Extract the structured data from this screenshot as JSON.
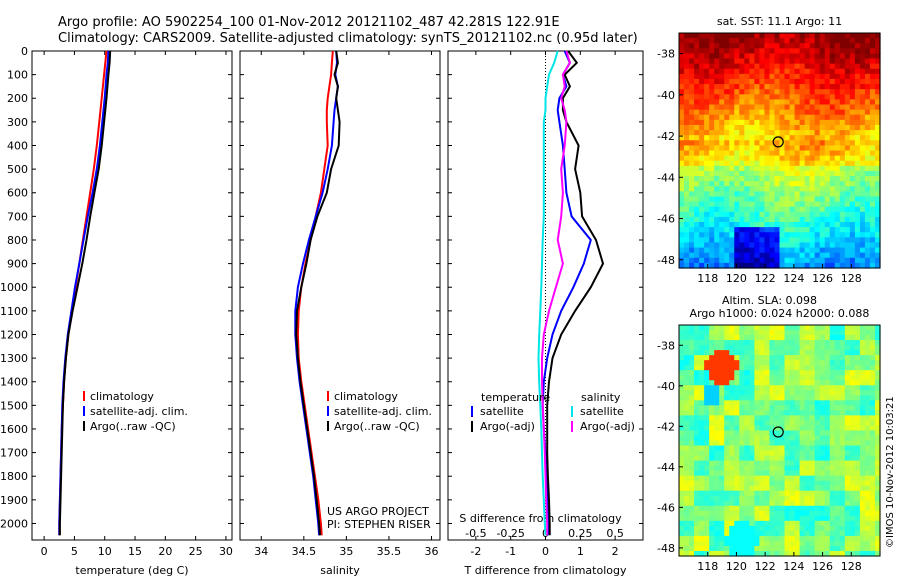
{
  "title": {
    "line1": "Argo profile: AO 5902254_100 01-Nov-2012 20121102_487 42.281S 122.91E",
    "line2": "Climatology: CARS2009. Satellite-adjusted climatology: synTS_20121102.nc (0.95d later)"
  },
  "colors": {
    "climatology": "#ff0000",
    "satellite": "#0000ff",
    "argo": "#000000",
    "sat_sal": "#00e5e5",
    "argo_sal": "#ff00ff"
  },
  "chart_data": [
    {
      "type": "line",
      "id": "temperature",
      "xlabel": "temperature (deg C)",
      "ylabel": "",
      "xlim": [
        -2,
        31
      ],
      "ylim": [
        2070,
        0
      ],
      "xticks": [
        0,
        5,
        10,
        15,
        20,
        25,
        30
      ],
      "yticks": [
        0,
        100,
        200,
        300,
        400,
        500,
        600,
        700,
        800,
        900,
        1000,
        1100,
        1200,
        1300,
        1400,
        1500,
        1600,
        1700,
        1800,
        1900,
        2000
      ],
      "depth": [
        0,
        50,
        100,
        200,
        300,
        400,
        500,
        600,
        700,
        800,
        900,
        1000,
        1100,
        1200,
        1300,
        1400,
        1500,
        1600,
        1700,
        1800,
        1900,
        2000,
        2050
      ],
      "legend": [
        "climatology",
        "satellite-adj. clim.",
        "Argo(..raw -QC)"
      ],
      "series": [
        {
          "name": "climatology",
          "color": "#ff0000",
          "values": [
            10.3,
            10.1,
            9.9,
            9.5,
            9.1,
            8.7,
            8.2,
            7.6,
            7.0,
            6.4,
            5.8,
            5.2,
            4.6,
            4.0,
            3.6,
            3.3,
            3.1,
            2.9,
            2.8,
            2.7,
            2.6,
            2.5,
            2.5
          ]
        },
        {
          "name": "satellite-adj. clim.",
          "color": "#0000ff",
          "values": [
            10.6,
            10.5,
            10.3,
            10.0,
            9.6,
            9.2,
            8.7,
            8.0,
            7.2,
            6.5,
            5.8,
            5.1,
            4.5,
            3.9,
            3.5,
            3.2,
            3.0,
            2.9,
            2.8,
            2.7,
            2.6,
            2.5,
            2.5
          ]
        },
        {
          "name": "Argo(..raw -QC)",
          "color": "#000000",
          "values": [
            10.9,
            10.8,
            10.6,
            10.3,
            9.9,
            9.5,
            9.0,
            8.3,
            7.6,
            7.0,
            6.3,
            5.5,
            4.7,
            4.0,
            3.6,
            3.3,
            3.1,
            3.0,
            2.9,
            2.8,
            2.7,
            2.6,
            2.6
          ]
        }
      ]
    },
    {
      "type": "line",
      "id": "salinity",
      "xlabel": "salinity",
      "ylabel": "",
      "xlim": [
        33.75,
        36.1
      ],
      "ylim": [
        2070,
        0
      ],
      "xticks": [
        34,
        34.5,
        35,
        35.5,
        36
      ],
      "xticklabels": [
        "34",
        "34.5",
        "35",
        "35.5",
        "36"
      ],
      "depth": [
        0,
        50,
        100,
        150,
        200,
        250,
        300,
        400,
        500,
        600,
        700,
        800,
        900,
        1000,
        1100,
        1200,
        1300,
        1400,
        1500,
        1600,
        1700,
        1800,
        1900,
        2000,
        2050
      ],
      "legend": [
        "climatology",
        "satellite-adj. clim.",
        "Argo(..raw -QC)"
      ],
      "annotation": [
        "US ARGO PROJECT",
        "PI: STEPHEN RISER"
      ],
      "series": [
        {
          "name": "climatology",
          "color": "#ff0000",
          "values": [
            34.84,
            34.83,
            34.82,
            34.8,
            34.78,
            34.77,
            34.77,
            34.78,
            34.74,
            34.7,
            34.64,
            34.58,
            34.52,
            34.47,
            34.44,
            34.43,
            34.44,
            34.47,
            34.51,
            34.55,
            34.59,
            34.63,
            34.67,
            34.7,
            34.71
          ]
        },
        {
          "name": "satellite-adj. clim.",
          "color": "#0000ff",
          "values": [
            34.88,
            34.89,
            34.87,
            34.9,
            34.88,
            34.86,
            34.85,
            34.83,
            34.78,
            34.72,
            34.64,
            34.56,
            34.49,
            34.43,
            34.4,
            34.4,
            34.42,
            34.45,
            34.49,
            34.53,
            34.57,
            34.61,
            34.64,
            34.67,
            34.68
          ]
        },
        {
          "name": "Argo(..raw -QC)",
          "color": "#000000",
          "values": [
            34.88,
            34.9,
            34.86,
            34.9,
            34.88,
            34.9,
            34.92,
            34.91,
            34.82,
            34.77,
            34.66,
            34.58,
            34.53,
            34.47,
            34.42,
            34.41,
            34.43,
            34.46,
            34.5,
            34.54,
            34.58,
            34.62,
            34.65,
            34.68,
            34.69
          ]
        }
      ]
    },
    {
      "type": "line",
      "id": "difference",
      "xlabel": "T difference from climatology",
      "xlabel_top": "S difference from climatology",
      "xlim": [
        -2.8,
        2.8
      ],
      "ylim": [
        2070,
        0
      ],
      "xticks": [
        -2,
        -1,
        0,
        1,
        2
      ],
      "top_ticks": [
        -0.5,
        -0.25,
        0,
        0.25,
        0.5
      ],
      "top_ticklabels": [
        "-0.5",
        "-0.25",
        "0",
        "0.25",
        "0.5"
      ],
      "legend_titles": [
        "temperature",
        "salinity"
      ],
      "legend": [
        "satellite",
        "Argo(-adj)",
        "satellite",
        "Argo(-adj)"
      ],
      "depth": [
        0,
        50,
        100,
        150,
        200,
        250,
        300,
        400,
        500,
        600,
        700,
        800,
        900,
        1000,
        1100,
        1200,
        1300,
        1400,
        1500,
        1600,
        1700,
        1800,
        1900,
        2000,
        2050
      ],
      "series": [
        {
          "name": "satellite",
          "color": "#0000ff",
          "values": [
            0.55,
            0.7,
            0.5,
            0.6,
            0.4,
            0.35,
            0.4,
            0.5,
            0.55,
            0.6,
            0.75,
            1.3,
            1.1,
            0.8,
            0.45,
            0.2,
            0.05,
            -0.05,
            -0.08,
            -0.05,
            0.0,
            0.02,
            0.05,
            0.08,
            0.08
          ]
        },
        {
          "name": "Argo(-adj)",
          "color": "#000000",
          "values": [
            0.65,
            0.9,
            0.55,
            0.7,
            0.5,
            0.5,
            0.6,
            0.95,
            0.85,
            1.0,
            1.05,
            1.45,
            1.65,
            1.3,
            0.85,
            0.45,
            0.2,
            0.1,
            0.05,
            0.05,
            0.05,
            0.07,
            0.1,
            0.12,
            0.12
          ]
        },
        {
          "name": "satellite",
          "color": "#00e5e5",
          "values": [
            0.35,
            0.25,
            0.1,
            0.05,
            0.0,
            0.0,
            -0.05,
            -0.05,
            -0.05,
            -0.05,
            -0.05,
            -0.08,
            -0.1,
            -0.12,
            -0.15,
            -0.18,
            -0.2,
            -0.18,
            -0.15,
            -0.12,
            -0.1,
            -0.08,
            -0.05,
            -0.02,
            0.0
          ]
        },
        {
          "name": "Argo(-adj)",
          "color": "#ff00ff",
          "values": [
            0.6,
            0.7,
            0.5,
            0.55,
            0.45,
            0.55,
            0.6,
            0.55,
            0.45,
            0.5,
            0.45,
            0.35,
            0.5,
            0.3,
            0.1,
            -0.05,
            -0.1,
            -0.1,
            -0.08,
            -0.05,
            -0.02,
            0.0,
            0.02,
            0.05,
            0.05
          ]
        }
      ]
    },
    {
      "type": "heatmap",
      "id": "sst-map",
      "title": "sat. SST: 11.1 Argo: 11",
      "xlim": [
        116,
        130
      ],
      "ylim": [
        -48.4,
        -37
      ],
      "xticks": [
        118,
        120,
        122,
        124,
        126,
        128
      ],
      "yticks": [
        -38,
        -40,
        -42,
        -44,
        -46,
        -48
      ],
      "marker": {
        "lon": 122.91,
        "lat": -42.281
      }
    },
    {
      "type": "heatmap",
      "id": "sla-map",
      "title_line1": "Altim. SLA: 0.098",
      "title_line2": "Argo h1000: 0.024 h2000: 0.088",
      "xlim": [
        116,
        130
      ],
      "ylim": [
        -48.4,
        -37
      ],
      "xticks": [
        118,
        120,
        122,
        124,
        126,
        128
      ],
      "yticks": [
        -38,
        -40,
        -42,
        -44,
        -46,
        -48
      ],
      "marker": {
        "lon": 122.91,
        "lat": -42.281
      }
    }
  ],
  "footer": "©IMOS 10-Nov-2012 10:03:21"
}
